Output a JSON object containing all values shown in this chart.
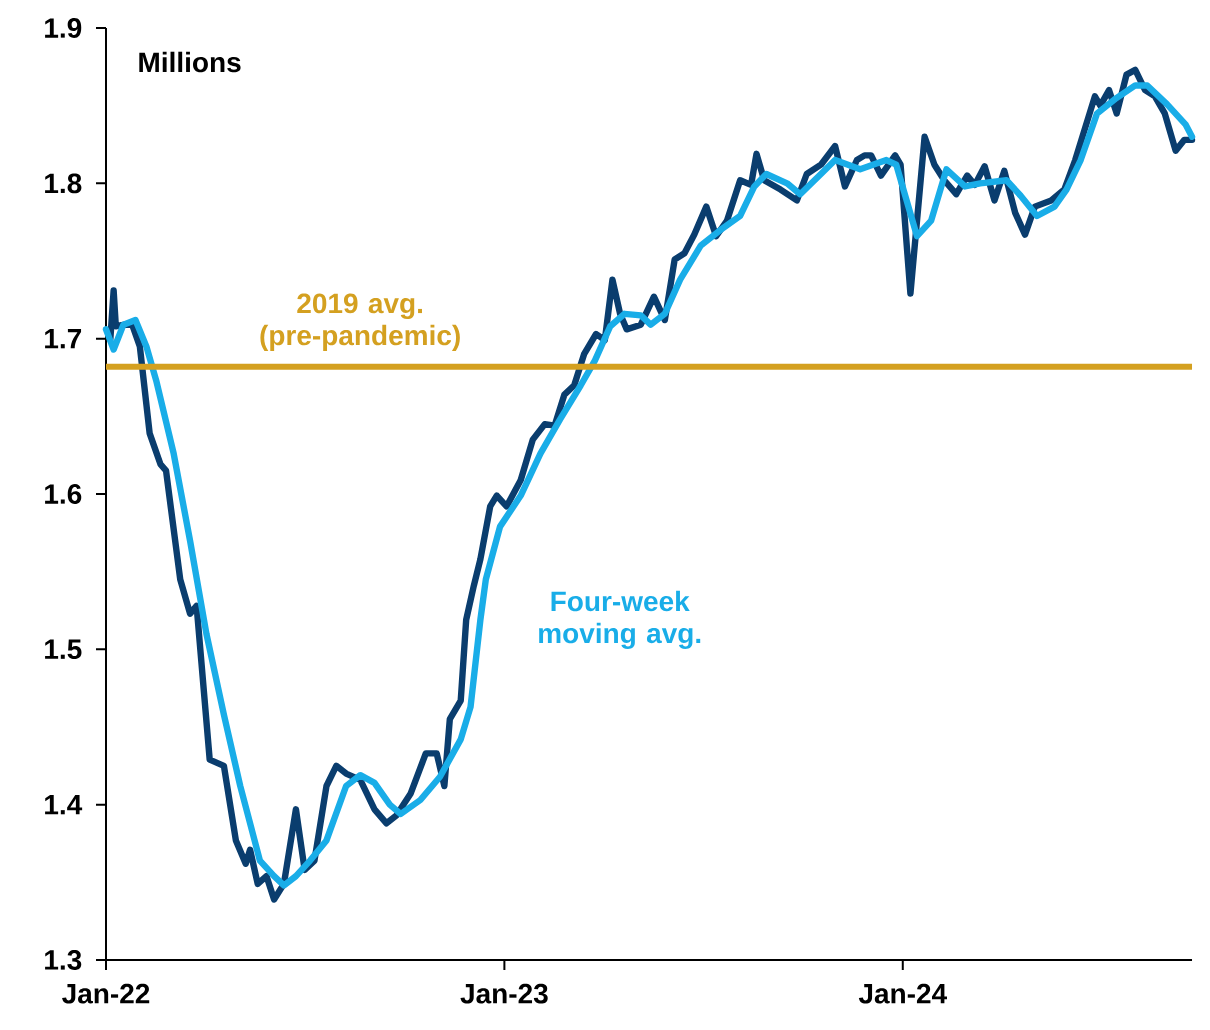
{
  "chart_data": {
    "type": "line",
    "annotations": [
      "Millions"
    ],
    "xlim": [
      "2022-01-01",
      "2024-09-22"
    ],
    "xticks": [
      {
        "value": "2022-01-01",
        "label": "Jan-22"
      },
      {
        "value": "2023-01-01",
        "label": "Jan-23"
      },
      {
        "value": "2024-01-01",
        "label": "Jan-24"
      }
    ],
    "ylim": [
      1.3,
      1.9
    ],
    "yticks": [
      1.3,
      1.4,
      1.5,
      1.6,
      1.7,
      1.8,
      1.9
    ],
    "grid": false,
    "legend": false,
    "marker": "none",
    "line_style": "solid",
    "ref_lines": [
      {
        "axis": "y",
        "value": 1.682,
        "label": "2019 avg. (pre-pandemic)",
        "color": "#d4a020"
      }
    ],
    "series": [
      {
        "color": "#0a3d6e",
        "x": [
          "2022-01-05",
          "2022-01-08",
          "2022-01-10",
          "2022-01-18",
          "2022-01-25",
          "2022-02-01",
          "2022-02-10",
          "2022-02-20",
          "2022-02-25",
          "2022-03-10",
          "2022-03-19",
          "2022-03-25",
          "2022-04-06",
          "2022-04-19",
          "2022-04-30",
          "2022-05-09",
          "2022-05-13",
          "2022-05-20",
          "2022-05-28",
          "2022-06-04",
          "2022-06-13",
          "2022-06-24",
          "2022-07-02",
          "2022-07-11",
          "2022-07-22",
          "2022-07-31",
          "2022-08-09",
          "2022-08-22",
          "2022-09-04",
          "2022-09-15",
          "2022-09-24",
          "2022-10-07",
          "2022-10-21",
          "2022-10-31",
          "2022-11-07",
          "2022-11-12",
          "2022-11-22",
          "2022-11-27",
          "2022-12-04",
          "2022-12-10",
          "2022-12-19",
          "2022-12-25",
          "2023-01-03",
          "2023-01-16",
          "2023-01-27",
          "2023-02-07",
          "2023-02-16",
          "2023-02-25",
          "2023-03-06",
          "2023-03-15",
          "2023-03-26",
          "2023-04-03",
          "2023-04-10",
          "2023-04-17",
          "2023-04-23",
          "2023-05-06",
          "2023-05-18",
          "2023-05-28",
          "2023-06-06",
          "2023-06-15",
          "2023-06-24",
          "2023-07-05",
          "2023-07-14",
          "2023-07-24",
          "2023-08-05",
          "2023-08-15",
          "2023-08-20",
          "2023-08-27",
          "2023-09-11",
          "2023-09-26",
          "2023-10-05",
          "2023-10-18",
          "2023-10-31",
          "2023-11-09",
          "2023-11-20",
          "2023-11-27",
          "2023-12-03",
          "2023-12-12",
          "2023-12-25",
          "2023-12-30",
          "2024-01-08",
          "2024-01-21",
          "2024-01-30",
          "2024-02-08",
          "2024-02-19",
          "2024-02-29",
          "2024-03-07",
          "2024-03-16",
          "2024-03-25",
          "2024-04-03",
          "2024-04-13",
          "2024-04-22",
          "2024-05-01",
          "2024-05-16",
          "2024-05-28",
          "2024-06-07",
          "2024-06-25",
          "2024-06-30",
          "2024-07-08",
          "2024-07-15",
          "2024-07-24",
          "2024-08-01",
          "2024-08-10",
          "2024-08-19",
          "2024-08-28",
          "2024-09-07",
          "2024-09-15",
          "2024-09-22"
        ],
        "values": [
          1.7,
          1.731,
          1.708,
          1.709,
          1.709,
          1.695,
          1.639,
          1.619,
          1.615,
          1.545,
          1.523,
          1.528,
          1.429,
          1.425,
          1.377,
          1.362,
          1.371,
          1.349,
          1.354,
          1.339,
          1.349,
          1.397,
          1.358,
          1.364,
          1.412,
          1.425,
          1.42,
          1.416,
          1.397,
          1.388,
          1.393,
          1.407,
          1.433,
          1.433,
          1.412,
          1.455,
          1.467,
          1.519,
          1.541,
          1.558,
          1.592,
          1.599,
          1.592,
          1.609,
          1.635,
          1.645,
          1.644,
          1.664,
          1.67,
          1.69,
          1.703,
          1.699,
          1.738,
          1.716,
          1.706,
          1.709,
          1.727,
          1.712,
          1.751,
          1.755,
          1.767,
          1.785,
          1.766,
          1.776,
          1.802,
          1.799,
          1.819,
          1.802,
          1.796,
          1.789,
          1.806,
          1.812,
          1.824,
          1.798,
          1.815,
          1.818,
          1.818,
          1.805,
          1.818,
          1.812,
          1.729,
          1.83,
          1.812,
          1.802,
          1.793,
          1.805,
          1.799,
          1.811,
          1.789,
          1.808,
          1.781,
          1.767,
          1.785,
          1.789,
          1.796,
          1.815,
          1.856,
          1.85,
          1.86,
          1.845,
          1.87,
          1.873,
          1.86,
          1.856,
          1.845,
          1.821,
          1.828,
          1.828
        ]
      },
      {
        "name": "Four-week moving avg.",
        "color": "#19ade8",
        "x": [
          "2022-01-01",
          "2022-01-08",
          "2022-01-17",
          "2022-01-28",
          "2022-02-07",
          "2022-02-16",
          "2022-03-04",
          "2022-03-19",
          "2022-04-03",
          "2022-04-19",
          "2022-05-04",
          "2022-05-22",
          "2022-06-04",
          "2022-06-13",
          "2022-06-24",
          "2022-07-07",
          "2022-07-22",
          "2022-08-09",
          "2022-08-22",
          "2022-09-04",
          "2022-09-18",
          "2022-09-28",
          "2022-10-16",
          "2022-11-03",
          "2022-11-22",
          "2022-12-01",
          "2022-12-10",
          "2022-12-15",
          "2022-12-28",
          "2023-01-16",
          "2023-02-03",
          "2023-02-21",
          "2023-03-12",
          "2023-03-25",
          "2023-04-08",
          "2023-04-21",
          "2023-05-06",
          "2023-05-15",
          "2023-05-28",
          "2023-06-11",
          "2023-06-30",
          "2023-07-18",
          "2023-08-05",
          "2023-08-18",
          "2023-08-29",
          "2023-09-17",
          "2023-09-29",
          "2023-10-18",
          "2023-10-31",
          "2023-11-23",
          "2023-12-17",
          "2023-12-26",
          "2024-01-14",
          "2024-01-27",
          "2024-02-10",
          "2024-02-27",
          "2024-03-12",
          "2024-04-05",
          "2024-04-18",
          "2024-05-03",
          "2024-05-19",
          "2024-05-30",
          "2024-06-12",
          "2024-06-27",
          "2024-07-13",
          "2024-08-01",
          "2024-08-12",
          "2024-08-30",
          "2024-09-16",
          "2024-09-22"
        ],
        "values": [
          1.706,
          1.693,
          1.709,
          1.712,
          1.695,
          1.673,
          1.626,
          1.57,
          1.51,
          1.458,
          1.412,
          1.364,
          1.354,
          1.348,
          1.354,
          1.364,
          1.377,
          1.412,
          1.419,
          1.414,
          1.4,
          1.394,
          1.403,
          1.418,
          1.442,
          1.463,
          1.519,
          1.545,
          1.579,
          1.599,
          1.626,
          1.648,
          1.67,
          1.686,
          1.708,
          1.716,
          1.715,
          1.709,
          1.716,
          1.738,
          1.76,
          1.77,
          1.779,
          1.798,
          1.806,
          1.8,
          1.793,
          1.806,
          1.815,
          1.809,
          1.815,
          1.812,
          1.766,
          1.776,
          1.809,
          1.798,
          1.8,
          1.802,
          1.792,
          1.779,
          1.785,
          1.796,
          1.815,
          1.845,
          1.854,
          1.863,
          1.863,
          1.851,
          1.838,
          1.83
        ]
      }
    ]
  }
}
